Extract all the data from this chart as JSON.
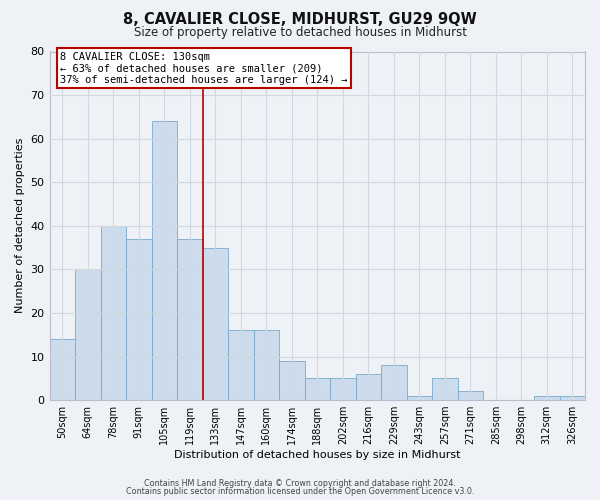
{
  "title": "8, CAVALIER CLOSE, MIDHURST, GU29 9QW",
  "subtitle": "Size of property relative to detached houses in Midhurst",
  "xlabel": "Distribution of detached houses by size in Midhurst",
  "ylabel": "Number of detached properties",
  "bar_labels": [
    "50sqm",
    "64sqm",
    "78sqm",
    "91sqm",
    "105sqm",
    "119sqm",
    "133sqm",
    "147sqm",
    "160sqm",
    "174sqm",
    "188sqm",
    "202sqm",
    "216sqm",
    "229sqm",
    "243sqm",
    "257sqm",
    "271sqm",
    "285sqm",
    "298sqm",
    "312sqm",
    "326sqm"
  ],
  "bar_values": [
    14,
    30,
    40,
    37,
    64,
    37,
    35,
    16,
    16,
    9,
    5,
    5,
    6,
    8,
    1,
    5,
    2,
    0,
    0,
    1,
    1
  ],
  "bar_color": "#ccdcec",
  "bar_edge_color": "#7aааcc",
  "grid_color": "#d0d8e0",
  "background_color": "#eef2f7",
  "vline_x_idx": 5,
  "vline_color": "#bb0000",
  "annotation_title": "8 CAVALIER CLOSE: 130sqm",
  "annotation_line1": "← 63% of detached houses are smaller (209)",
  "annotation_line2": "37% of semi-detached houses are larger (124) →",
  "annotation_box_facecolor": "#ffffff",
  "annotation_box_edgecolor": "#bb0000",
  "ylim": [
    0,
    80
  ],
  "yticks": [
    0,
    10,
    20,
    30,
    40,
    50,
    60,
    70,
    80
  ],
  "footer1": "Contains HM Land Registry data © Crown copyright and database right 2024.",
  "footer2": "Contains public sector information licensed under the Open Government Licence v3.0."
}
